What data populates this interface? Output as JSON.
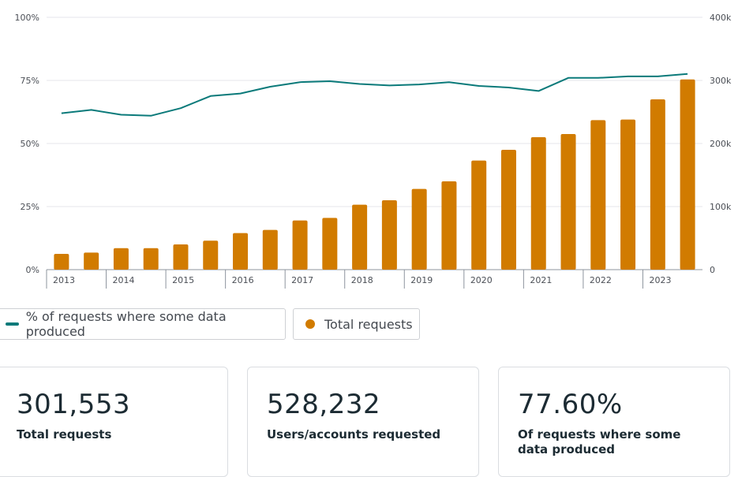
{
  "chart_data": {
    "type": "bar+line",
    "categories": [
      "2013 H1",
      "2013 H2",
      "2014 H1",
      "2014 H2",
      "2015 H1",
      "2015 H2",
      "2016 H1",
      "2016 H2",
      "2017 H1",
      "2017 H2",
      "2018 H1",
      "2018 H2",
      "2019 H1",
      "2019 H2",
      "2020 H1",
      "2020 H2",
      "2021 H1",
      "2021 H2",
      "2022 H1",
      "2022 H2",
      "2023 H1",
      "2023 H2"
    ],
    "x_tick_labels": [
      "2013",
      "2014",
      "2015",
      "2016",
      "2017",
      "2018",
      "2019",
      "2020",
      "2021",
      "2022",
      "2023"
    ],
    "left_axis": {
      "ticks": [
        "100%",
        "75%",
        "50%",
        "25%",
        "0%"
      ],
      "ylim": [
        0,
        100
      ]
    },
    "right_axis": {
      "ticks": [
        "400k",
        "300k",
        "200k",
        "100k",
        "0"
      ],
      "ylim": [
        0,
        400000
      ]
    },
    "series": [
      {
        "name": "Total requests",
        "type": "bar",
        "axis": "right",
        "color": "#d17b00",
        "values": [
          25000,
          27000,
          34000,
          34000,
          40000,
          46000,
          58000,
          63000,
          78000,
          82000,
          103000,
          110000,
          128000,
          140000,
          173000,
          190000,
          210000,
          215000,
          237000,
          238000,
          270000,
          301553
        ]
      },
      {
        "name": "% of requests where some data produced",
        "type": "line",
        "axis": "left",
        "color": "#0b7a7a",
        "values": [
          62.0,
          63.3,
          61.4,
          61.0,
          64.0,
          68.8,
          69.8,
          72.5,
          74.3,
          74.7,
          73.6,
          73.0,
          73.4,
          74.3,
          72.8,
          72.2,
          70.8,
          76.0,
          76.0,
          76.6,
          76.6,
          77.6
        ]
      }
    ]
  },
  "legend": {
    "line_label": "% of requests where some data produced",
    "line_color": "#0b7a7a",
    "bar_label": "Total requests",
    "bar_color": "#d17b00"
  },
  "cards": [
    {
      "value": "301,553",
      "label": "Total requests"
    },
    {
      "value": "528,232",
      "label": "Users/accounts requested"
    },
    {
      "value": "77.60%",
      "label": "Of requests where some data produced"
    }
  ]
}
